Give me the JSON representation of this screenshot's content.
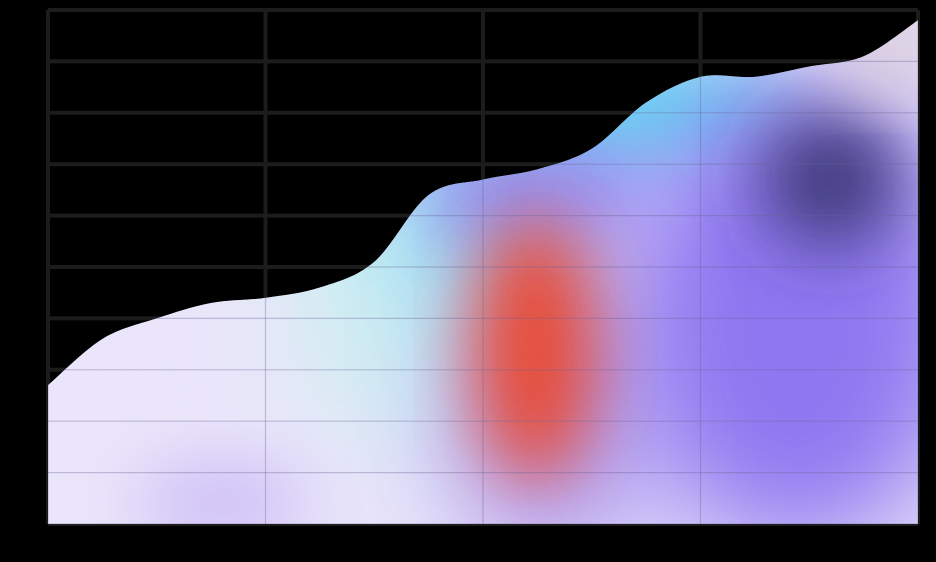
{
  "colors": {
    "background": "#000000",
    "grid_line": "#1c1c1c",
    "area_light_lavender": "#e9e4fa",
    "area_cyan": "#5fd6f2",
    "area_mint": "#cdeff0",
    "area_red": "#e8452e",
    "area_violet": "#8a72f0",
    "area_deep_indigo": "#3a3478",
    "area_pink_gray": "#d7c8d6"
  },
  "chart_data": {
    "type": "area",
    "title": "",
    "xlabel": "",
    "ylabel": "",
    "x": [
      0,
      0.25,
      0.5,
      0.75,
      1,
      1.25,
      1.5,
      1.75,
      2,
      2.25,
      2.5,
      2.75,
      3,
      3.25,
      3.5,
      3.75,
      4
    ],
    "xlim": [
      0,
      4
    ],
    "ylim": [
      0,
      10
    ],
    "grid": true,
    "x_gridlines": 4,
    "y_gridlines": 10,
    "series": [
      {
        "values": [
          2.7,
          3.6,
          4.0,
          4.3,
          4.4,
          4.6,
          5.1,
          6.4,
          6.7,
          6.9,
          7.3,
          8.2,
          8.7,
          8.7,
          8.9,
          9.1,
          9.8
        ],
        "fill": "gradient"
      }
    ]
  }
}
